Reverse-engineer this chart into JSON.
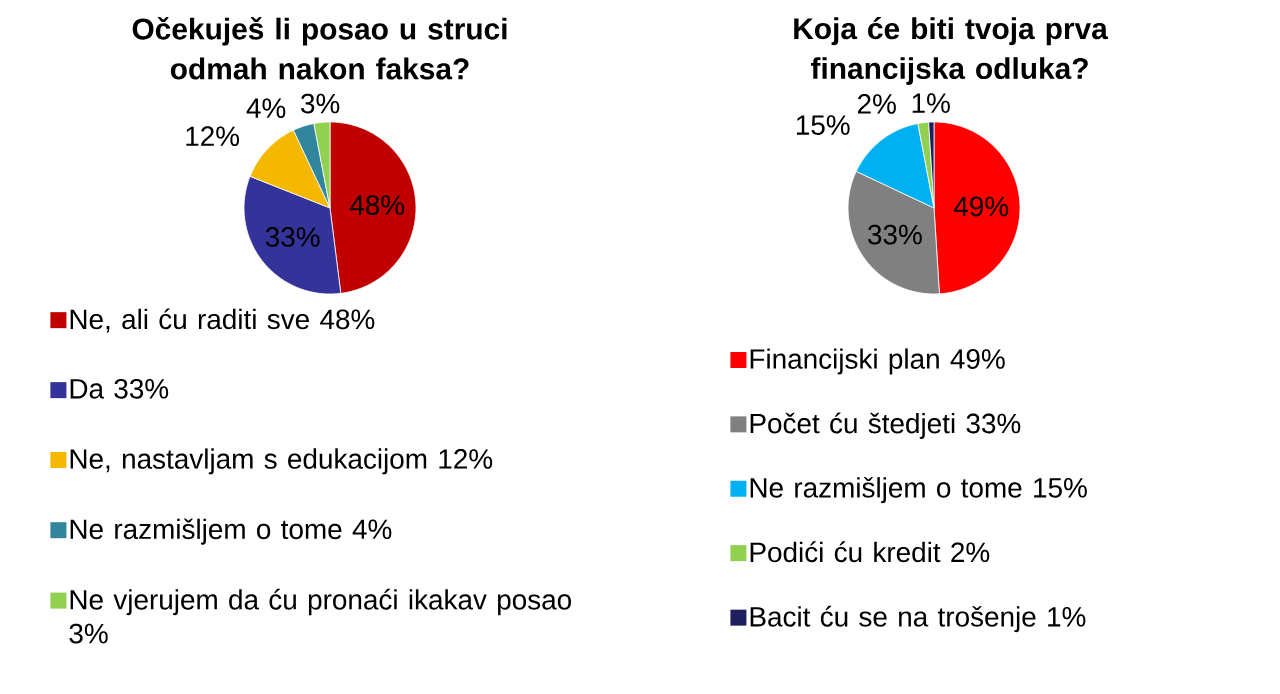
{
  "chart_data": [
    {
      "type": "pie",
      "title": "Očekuješ li posao u struci odmah nakon faksa?",
      "categories": [
        "Ne, ali ću raditi sve 48%",
        "Da 33%",
        "Ne, nastavljam s edukacijom 12%",
        "Ne razmišljem o tome 4%",
        "Ne vjerujem da ću pronaći ikakav posao 3%"
      ],
      "values": [
        48,
        33,
        12,
        4,
        3
      ],
      "value_labels": [
        "48%",
        "33%",
        "12%",
        "4%",
        "3%"
      ],
      "colors": [
        "#c00000",
        "#333399",
        "#f5b800",
        "#31859c",
        "#92d050"
      ],
      "legend": "bottom"
    },
    {
      "type": "pie",
      "title": "Koja će biti tvoja prva financijska odluka?",
      "categories": [
        "Financijski plan 49%",
        "Počet ću štedjeti 33%",
        "Ne razmišljem o tome 15%",
        "Podići ću kredit 2%",
        "Bacit ću se na trošenje 1%"
      ],
      "values": [
        49,
        33,
        15,
        2,
        1
      ],
      "value_labels": [
        "49%",
        "33%",
        "15%",
        "2%",
        "1%"
      ],
      "colors": [
        "#ff0000",
        "#808080",
        "#00b0f0",
        "#92d050",
        "#1f1f5f"
      ],
      "legend": "bottom"
    }
  ]
}
